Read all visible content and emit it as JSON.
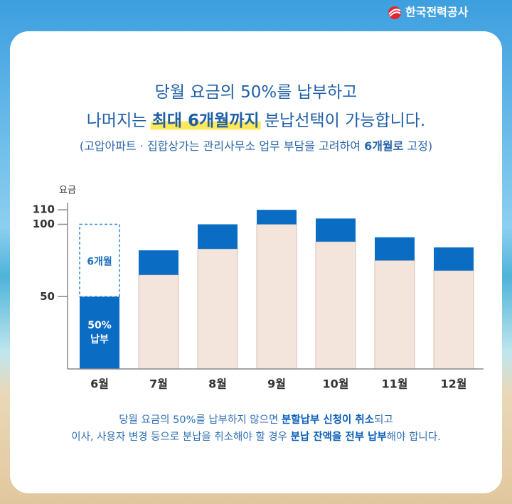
{
  "header": {
    "logo": "한국전력공사"
  },
  "headline": {
    "lines": [
      [
        {
          "text": "당월 요금의 50%를 납부하고"
        }
      ],
      [
        {
          "text": "나머지는 "
        },
        {
          "text": "최대 6개월까지",
          "bold": true
        },
        {
          "text": " 분납선택이 가능합니다."
        }
      ]
    ],
    "note": [
      {
        "text": "(고압아파트 · 집합상가는 관리사무소 업무 부담을 고려하여 "
      },
      {
        "text": "6개월로",
        "bold": true
      },
      {
        "text": " 고정)"
      }
    ]
  },
  "chart_data": {
    "type": "bar",
    "stacked": true,
    "y_label": "요금",
    "categories": [
      "6월",
      "7월",
      "8월",
      "9월",
      "10월",
      "11월",
      "12월"
    ],
    "series": [
      {
        "color": "#f3e4dc",
        "values": [
          null,
          65,
          83,
          100,
          88,
          75,
          68
        ]
      },
      {
        "color": "#0b6cc3",
        "values": [
          50,
          17,
          17,
          10,
          16,
          16,
          16
        ]
      },
      {
        "color": "#2f86d6",
        "dashed": true,
        "values": [
          50,
          null,
          null,
          null,
          null,
          null,
          null
        ]
      }
    ],
    "annotations": [
      "6개월",
      "50%",
      "납부"
    ],
    "ylim": [
      0,
      115
    ],
    "yticks": [
      50,
      100,
      110
    ]
  },
  "footer": {
    "lines": [
      [
        {
          "text": "당월 요금의 50%를 납부하지 않으면 "
        },
        {
          "text": "분할납부 신청이 취소",
          "bold": true
        },
        {
          "text": "되고"
        }
      ],
      [
        {
          "text": "이사, 사용자 변경 등으로 분납을 취소해야 할 경우 "
        },
        {
          "text": "분납 잔액을 전부 납부",
          "bold": true
        },
        {
          "text": "해야 합니다."
        }
      ]
    ]
  }
}
